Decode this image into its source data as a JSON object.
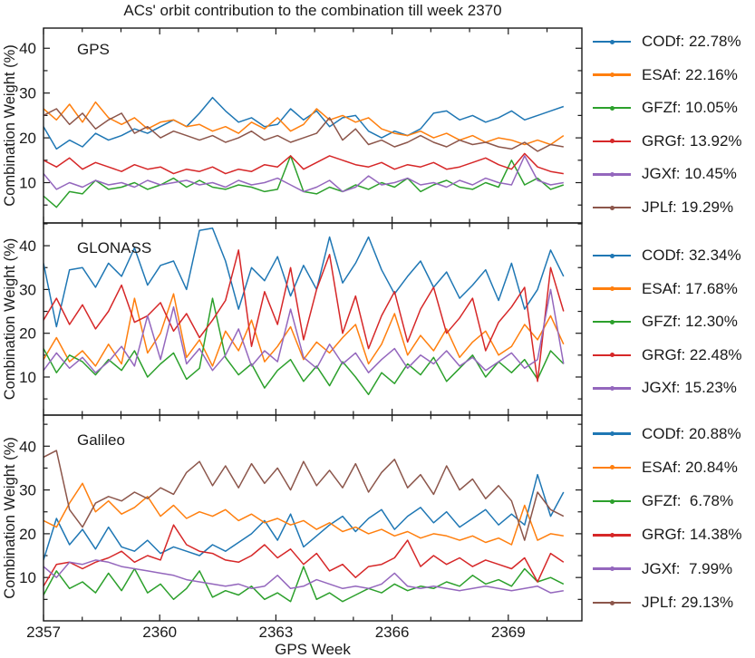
{
  "title": "ACs' orbit contribution to the combination till week 2370",
  "colors": {
    "CODf": "#1f77b4",
    "ESAf": "#ff7f0e",
    "GFZf": "#2ca02c",
    "GRGf": "#d62728",
    "JGXf": "#9467bd",
    "JPLf": "#8c564b"
  },
  "chart_data": [
    {
      "type": "line",
      "system": "GPS",
      "title": "GPS",
      "xlabel": "GPS Week",
      "ylabel": "Combination Weight (%)",
      "xlim": [
        2357,
        2370.9
      ],
      "ylim": [
        1.0,
        44.5
      ],
      "x_ticks_labeled": [
        2357,
        2360,
        2363,
        2366,
        2369
      ],
      "x_tick_minor_step": 1,
      "y_ticks": [
        10,
        20,
        30,
        40
      ],
      "y_tick_minor_step": 5,
      "x_start": 2357,
      "x_step": 0.3357,
      "series": [
        {
          "name": "CODf",
          "legend_label": "CODf: 22.78%",
          "mean_weight_pct": 22.78,
          "values": [
            22.5,
            17.5,
            19.5,
            18.0,
            21.0,
            19.5,
            20.5,
            22.0,
            21.0,
            22.5,
            24.0,
            22.5,
            25.5,
            29.0,
            26.0,
            23.5,
            24.5,
            22.5,
            23.0,
            26.5,
            24.0,
            26.0,
            22.5,
            24.5,
            25.0,
            21.5,
            20.0,
            21.5,
            20.5,
            22.0,
            25.5,
            26.0,
            24.0,
            25.0,
            23.5,
            24.5,
            26.0,
            24.0,
            25.0,
            26.0,
            27.0
          ]
        },
        {
          "name": "ESAf",
          "legend_label": "ESAf: 22.16%",
          "mean_weight_pct": 22.16,
          "values": [
            26.5,
            24.0,
            27.5,
            23.5,
            28.0,
            24.5,
            23.0,
            24.5,
            22.0,
            23.5,
            24.0,
            22.5,
            23.0,
            21.5,
            22.5,
            21.0,
            23.5,
            22.0,
            24.5,
            21.5,
            23.0,
            26.5,
            24.0,
            25.0,
            23.5,
            24.5,
            22.0,
            21.0,
            20.5,
            21.5,
            20.0,
            21.0,
            19.5,
            20.5,
            19.0,
            20.0,
            19.5,
            18.5,
            19.5,
            18.5,
            20.5
          ]
        },
        {
          "name": "GFZf",
          "legend_label": "GFZf: 10.05%",
          "mean_weight_pct": 10.05,
          "values": [
            7.0,
            4.5,
            8.0,
            7.5,
            10.5,
            8.5,
            9.0,
            10.0,
            8.5,
            9.5,
            11.0,
            9.0,
            10.5,
            9.0,
            8.5,
            9.5,
            9.0,
            8.0,
            8.5,
            16.0,
            8.0,
            7.5,
            9.0,
            8.0,
            9.5,
            8.5,
            10.0,
            9.0,
            11.0,
            8.0,
            9.5,
            10.5,
            9.0,
            8.5,
            10.0,
            9.0,
            15.0,
            9.5,
            11.0,
            8.5,
            9.5
          ]
        },
        {
          "name": "GRGf",
          "legend_label": "GRGf: 13.92%",
          "mean_weight_pct": 13.92,
          "values": [
            15.0,
            13.5,
            15.5,
            13.0,
            14.5,
            13.5,
            12.5,
            14.0,
            13.0,
            13.5,
            12.0,
            13.0,
            12.5,
            13.5,
            12.0,
            13.0,
            12.5,
            14.0,
            13.5,
            16.0,
            13.0,
            14.5,
            16.0,
            15.0,
            14.0,
            13.5,
            14.5,
            13.0,
            14.0,
            13.5,
            14.5,
            13.0,
            13.5,
            14.5,
            15.5,
            14.0,
            13.0,
            16.5,
            13.5,
            12.5,
            12.0
          ]
        },
        {
          "name": "JGXf",
          "legend_label": "JGXf: 10.45%",
          "mean_weight_pct": 10.45,
          "values": [
            12.0,
            8.5,
            10.0,
            9.0,
            10.5,
            9.5,
            10.0,
            9.0,
            10.5,
            9.5,
            10.0,
            10.5,
            9.5,
            10.0,
            9.0,
            10.5,
            9.5,
            10.0,
            11.0,
            9.5,
            8.0,
            9.0,
            10.5,
            8.0,
            9.0,
            11.5,
            9.5,
            10.0,
            11.0,
            9.5,
            10.0,
            9.0,
            10.5,
            9.5,
            11.0,
            10.0,
            9.5,
            16.0,
            10.5,
            9.5,
            10.0
          ]
        },
        {
          "name": "JPLf",
          "legend_label": "JPLf: 19.29%",
          "mean_weight_pct": 19.29,
          "values": [
            25.0,
            26.5,
            23.0,
            25.5,
            22.0,
            24.0,
            25.5,
            21.0,
            22.5,
            20.0,
            21.5,
            20.5,
            19.5,
            20.5,
            19.0,
            20.0,
            21.5,
            19.5,
            20.5,
            19.0,
            20.0,
            21.0,
            24.5,
            19.5,
            22.0,
            18.5,
            19.5,
            18.0,
            19.0,
            20.5,
            19.0,
            18.0,
            19.5,
            18.5,
            19.0,
            18.0,
            17.5,
            19.0,
            17.0,
            18.5,
            18.0
          ]
        }
      ]
    },
    {
      "type": "line",
      "system": "GLONASS",
      "title": "GLONASS",
      "xlabel": "GPS Week",
      "ylabel": "Combination Weight (%)",
      "xlim": [
        2357,
        2370.9
      ],
      "ylim": [
        1.3,
        45.2
      ],
      "x_ticks_labeled": [
        2357,
        2360,
        2363,
        2366,
        2369
      ],
      "x_tick_minor_step": 1,
      "y_ticks": [
        10,
        20,
        30,
        40
      ],
      "y_tick_minor_step": 5,
      "x_start": 2357,
      "x_step": 0.3357,
      "series": [
        {
          "name": "CODf",
          "legend_label": "CODf: 32.34%",
          "mean_weight_pct": 32.34,
          "values": [
            36.0,
            21.5,
            34.5,
            35.0,
            30.5,
            36.0,
            33.0,
            39.5,
            31.0,
            35.5,
            36.5,
            30.0,
            43.5,
            44.0,
            36.5,
            25.5,
            35.0,
            32.0,
            37.5,
            28.5,
            35.5,
            30.0,
            42.0,
            31.5,
            36.0,
            42.0,
            34.5,
            29.0,
            33.0,
            36.5,
            30.5,
            34.0,
            28.0,
            31.0,
            34.5,
            27.5,
            36.0,
            25.5,
            30.0,
            39.0,
            33.0
          ]
        },
        {
          "name": "ESAf",
          "legend_label": "ESAf: 17.68%",
          "mean_weight_pct": 17.68,
          "values": [
            14.0,
            19.0,
            13.5,
            16.0,
            12.5,
            17.5,
            13.0,
            28.0,
            15.5,
            20.0,
            29.0,
            14.5,
            18.5,
            12.5,
            20.5,
            16.0,
            23.0,
            13.5,
            17.0,
            21.5,
            14.0,
            18.0,
            15.5,
            19.0,
            22.0,
            13.0,
            17.5,
            24.5,
            15.0,
            19.5,
            16.0,
            21.0,
            14.5,
            18.0,
            20.5,
            15.0,
            17.0,
            22.0,
            18.5,
            24.0,
            17.5
          ]
        },
        {
          "name": "GFZf",
          "legend_label": "GFZf: 12.30%",
          "mean_weight_pct": 12.3,
          "values": [
            16.5,
            11.0,
            15.0,
            13.5,
            10.5,
            14.0,
            11.5,
            16.0,
            10.0,
            13.0,
            15.5,
            9.5,
            12.0,
            28.0,
            14.5,
            10.5,
            13.0,
            7.5,
            11.5,
            14.0,
            9.0,
            12.5,
            8.0,
            13.5,
            10.0,
            6.0,
            11.0,
            8.5,
            13.0,
            10.5,
            14.5,
            9.0,
            12.0,
            15.0,
            10.0,
            13.5,
            11.0,
            14.0,
            9.5,
            16.0,
            13.0
          ]
        },
        {
          "name": "GRGf",
          "legend_label": "GRGf: 22.48%",
          "mean_weight_pct": 22.48,
          "values": [
            23.0,
            28.0,
            22.0,
            26.5,
            21.0,
            25.0,
            31.0,
            22.5,
            24.0,
            27.0,
            20.5,
            24.5,
            19.0,
            23.0,
            27.5,
            39.0,
            17.0,
            29.5,
            22.0,
            35.0,
            18.5,
            30.0,
            38.0,
            20.0,
            28.5,
            16.5,
            24.0,
            29.5,
            18.0,
            25.5,
            30.5,
            20.0,
            23.5,
            28.0,
            16.0,
            22.5,
            26.0,
            30.5,
            9.0,
            35.0,
            25.0
          ]
        },
        {
          "name": "JGXf",
          "legend_label": "JGXf: 15.23%",
          "mean_weight_pct": 15.23,
          "values": [
            11.5,
            15.5,
            12.0,
            14.5,
            11.0,
            13.5,
            17.0,
            12.5,
            24.0,
            14.0,
            26.0,
            13.0,
            16.5,
            11.5,
            15.0,
            21.0,
            12.5,
            16.0,
            13.5,
            25.5,
            14.5,
            12.0,
            17.5,
            13.0,
            15.5,
            11.0,
            14.0,
            16.5,
            12.0,
            15.0,
            13.0,
            16.0,
            12.5,
            14.5,
            11.5,
            13.5,
            15.5,
            12.0,
            14.0,
            30.0,
            13.0
          ]
        }
      ]
    },
    {
      "type": "line",
      "system": "Galileo",
      "title": "Galileo",
      "xlabel": "GPS Week",
      "ylabel": "Combination Weight (%)",
      "xlim": [
        2357,
        2370.9
      ],
      "ylim": [
        0.1,
        47.1
      ],
      "x_ticks_labeled": [
        2357,
        2360,
        2363,
        2366,
        2369
      ],
      "x_tick_minor_step": 1,
      "y_ticks": [
        10,
        20,
        30,
        40
      ],
      "y_tick_minor_step": 5,
      "x_start": 2357,
      "x_step": 0.3357,
      "series": [
        {
          "name": "CODf",
          "legend_label": "CODf: 20.88%",
          "mean_weight_pct": 20.88,
          "values": [
            14.0,
            23.5,
            17.5,
            21.0,
            16.5,
            21.5,
            17.0,
            16.0,
            18.5,
            15.5,
            17.0,
            16.0,
            15.0,
            17.5,
            16.0,
            18.0,
            20.0,
            23.0,
            18.5,
            24.5,
            17.0,
            19.5,
            22.0,
            24.0,
            20.5,
            23.5,
            25.5,
            21.0,
            24.0,
            26.0,
            22.5,
            25.0,
            21.5,
            23.5,
            25.5,
            22.0,
            24.5,
            22.0,
            33.5,
            24.0,
            29.5
          ]
        },
        {
          "name": "ESAf",
          "legend_label": "ESAf: 20.84%",
          "mean_weight_pct": 20.84,
          "values": [
            23.0,
            21.5,
            27.0,
            31.5,
            25.0,
            27.5,
            24.5,
            26.0,
            28.5,
            24.0,
            26.5,
            23.5,
            25.0,
            24.0,
            25.5,
            23.0,
            24.5,
            22.5,
            23.5,
            22.0,
            23.0,
            21.0,
            22.5,
            20.5,
            21.5,
            20.0,
            21.0,
            19.5,
            20.5,
            19.0,
            20.0,
            19.5,
            18.5,
            19.5,
            18.0,
            19.0,
            17.5,
            26.5,
            18.5,
            20.0,
            19.5
          ]
        },
        {
          "name": "GFZf",
          "legend_label": "GFZf:  6.78%",
          "mean_weight_pct": 6.78,
          "values": [
            6.0,
            11.5,
            7.5,
            9.0,
            6.5,
            11.0,
            7.0,
            12.0,
            6.5,
            8.5,
            5.0,
            7.5,
            11.5,
            5.5,
            7.0,
            6.0,
            8.0,
            5.0,
            6.5,
            4.5,
            12.5,
            5.0,
            6.5,
            4.5,
            6.0,
            7.5,
            6.5,
            8.5,
            7.0,
            8.0,
            7.5,
            9.0,
            8.0,
            10.5,
            8.5,
            9.5,
            8.0,
            12.0,
            9.0,
            10.0,
            8.5
          ]
        },
        {
          "name": "GRGf",
          "legend_label": "GRGf: 14.38%",
          "mean_weight_pct": 14.38,
          "values": [
            8.0,
            13.0,
            13.5,
            12.0,
            13.5,
            14.5,
            16.0,
            13.5,
            15.0,
            14.0,
            22.0,
            17.5,
            16.0,
            15.5,
            14.0,
            13.5,
            15.0,
            17.5,
            14.5,
            16.5,
            13.0,
            15.5,
            11.5,
            13.0,
            10.0,
            12.5,
            13.0,
            14.5,
            18.5,
            12.5,
            15.0,
            13.0,
            14.5,
            12.5,
            14.0,
            13.0,
            12.0,
            14.5,
            9.0,
            15.5,
            13.5
          ]
        },
        {
          "name": "JGXf",
          "legend_label": "JGXf:  7.99%",
          "mean_weight_pct": 7.99,
          "values": [
            12.5,
            10.0,
            13.5,
            13.0,
            14.0,
            13.5,
            12.5,
            12.0,
            11.5,
            11.0,
            10.5,
            9.5,
            9.0,
            8.5,
            8.0,
            8.5,
            7.5,
            8.0,
            10.5,
            7.5,
            8.0,
            9.5,
            8.5,
            7.5,
            8.0,
            7.5,
            8.5,
            11.0,
            8.0,
            7.5,
            8.0,
            7.5,
            7.0,
            7.5,
            8.0,
            7.5,
            7.0,
            7.5,
            8.0,
            6.5,
            7.0
          ]
        },
        {
          "name": "JPLf",
          "legend_label": "JPLf: 29.13%",
          "mean_weight_pct": 29.13,
          "values": [
            37.5,
            39.0,
            25.5,
            21.5,
            27.0,
            28.5,
            27.5,
            29.5,
            28.0,
            30.5,
            29.0,
            34.0,
            36.5,
            31.0,
            35.5,
            30.5,
            36.0,
            31.5,
            35.0,
            30.0,
            36.5,
            31.0,
            34.5,
            30.5,
            36.0,
            29.5,
            34.0,
            37.0,
            30.5,
            33.5,
            29.0,
            35.5,
            30.0,
            32.5,
            28.0,
            31.0,
            27.5,
            18.5,
            29.5,
            25.5,
            24.0
          ]
        }
      ]
    }
  ]
}
